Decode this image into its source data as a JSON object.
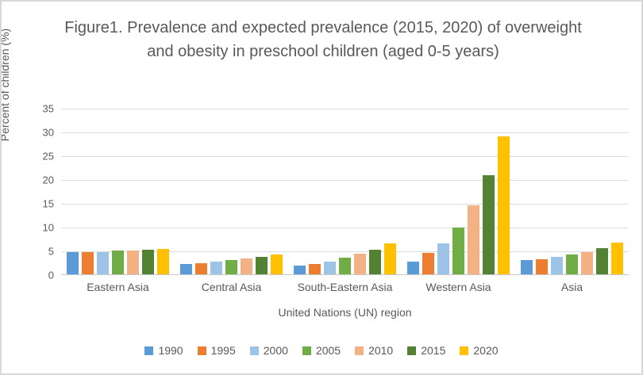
{
  "chart_data": {
    "type": "bar",
    "title": "Figure1. Prevalence and expected prevalence (2015, 2020) of overweight and obesity in preschool children (aged 0-5 years)",
    "xlabel": "United Nations (UN) region",
    "ylabel": "Percent of children (%)",
    "ylim": [
      0,
      35
    ],
    "yticks": [
      0,
      5,
      10,
      15,
      20,
      25,
      30,
      35
    ],
    "grid": true,
    "legend_position": "bottom",
    "categories": [
      "Eastern Asia",
      "Central Asia",
      "South-Eastern Asia",
      "Western Asia",
      "Asia"
    ],
    "series": [
      {
        "name": "1990",
        "color": "#5B9BD5",
        "values": [
          4.8,
          2.3,
          2.0,
          2.9,
          3.2
        ]
      },
      {
        "name": "1995",
        "color": "#ED7D31",
        "values": [
          4.8,
          2.5,
          2.4,
          4.6,
          3.4
        ]
      },
      {
        "name": "2000",
        "color": "#9DC3E6",
        "values": [
          4.9,
          2.8,
          2.9,
          6.7,
          3.8
        ]
      },
      {
        "name": "2005",
        "color": "#70AD47",
        "values": [
          5.1,
          3.2,
          3.7,
          10.0,
          4.3
        ]
      },
      {
        "name": "2010",
        "color": "#F4B183",
        "values": [
          5.2,
          3.5,
          4.5,
          14.6,
          4.9
        ]
      },
      {
        "name": "2015",
        "color": "#548235",
        "values": [
          5.3,
          3.9,
          5.4,
          21.0,
          5.6
        ]
      },
      {
        "name": "2020",
        "color": "#FFC000",
        "values": [
          5.5,
          4.3,
          6.6,
          29.2,
          6.8
        ]
      }
    ],
    "colors": {
      "text": "#595959",
      "gridline": "#dcdcdc",
      "axis_line": "#c8c8c8",
      "frame_border": "#d8d8d8",
      "background": "#ffffff"
    }
  }
}
